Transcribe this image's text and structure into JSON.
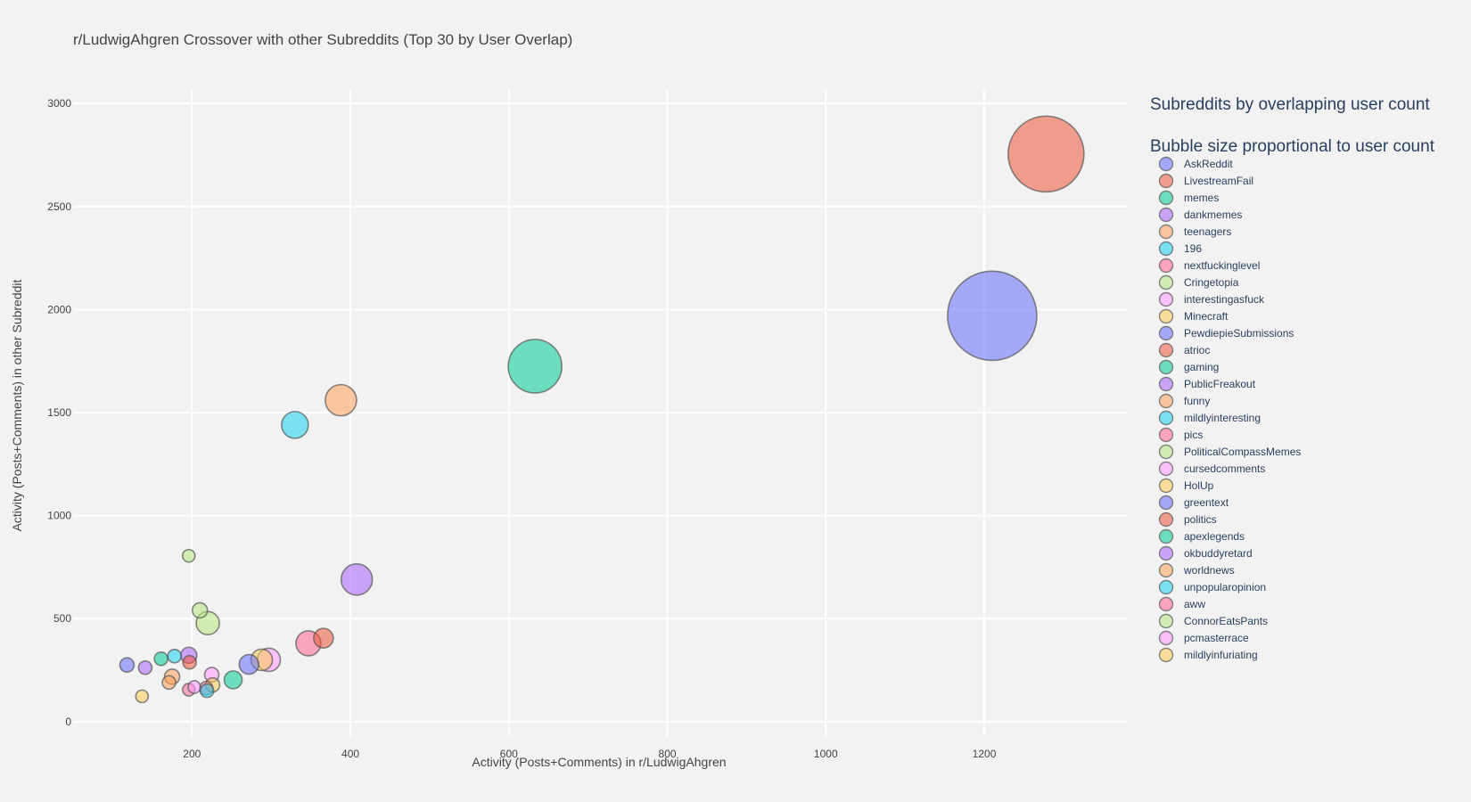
{
  "chart_data": {
    "type": "scatter",
    "title": "r/LudwigAhgren Crossover with other Subreddits (Top 30 by User Overlap)",
    "xlabel": "Activity (Posts+Comments) in r/LudwigAhgren",
    "ylabel": "Activity (Posts+Comments) in other Subreddit",
    "xlim": [
      50,
      1380
    ],
    "ylim": [
      -70,
      3070
    ],
    "xticks": [
      200,
      400,
      600,
      800,
      1000,
      1200
    ],
    "yticks": [
      0,
      500,
      1000,
      1500,
      2000,
      2500,
      3000
    ],
    "legend_title": "Subreddits by overlapping user count",
    "legend_subtitle": "Bubble size proportional to user count",
    "legend_position": "right",
    "grid": true,
    "series": [
      {
        "name": "AskReddit",
        "x": 1210,
        "y": 1970,
        "size": 100,
        "color": "#636efa"
      },
      {
        "name": "LivestreamFail",
        "x": 1278,
        "y": 2755,
        "size": 85,
        "color": "#EF553B"
      },
      {
        "name": "memes",
        "x": 633,
        "y": 1725,
        "size": 60,
        "color": "#00cc96"
      },
      {
        "name": "dankmemes",
        "x": 408,
        "y": 690,
        "size": 35,
        "color": "#ab63fa"
      },
      {
        "name": "teenagers",
        "x": 388,
        "y": 1560,
        "size": 35,
        "color": "#FFA15A"
      },
      {
        "name": "196",
        "x": 330,
        "y": 1440,
        "size": 30,
        "color": "#19d3f3"
      },
      {
        "name": "nextfuckinglevel",
        "x": 347,
        "y": 380,
        "size": 28,
        "color": "#FF6692"
      },
      {
        "name": "Cringetopia",
        "x": 220,
        "y": 478,
        "size": 26,
        "color": "#B6E880"
      },
      {
        "name": "interestingasfuck",
        "x": 297,
        "y": 300,
        "size": 26,
        "color": "#FF97FF"
      },
      {
        "name": "Minecraft",
        "x": 288,
        "y": 300,
        "size": 24,
        "color": "#FECB52"
      },
      {
        "name": "PewdiepieSubmissions",
        "x": 272,
        "y": 278,
        "size": 22,
        "color": "#636efa"
      },
      {
        "name": "atrioc",
        "x": 366,
        "y": 405,
        "size": 22,
        "color": "#EF553B"
      },
      {
        "name": "gaming",
        "x": 252,
        "y": 203,
        "size": 20,
        "color": "#00cc96"
      },
      {
        "name": "PublicFreakout",
        "x": 196,
        "y": 322,
        "size": 18,
        "color": "#ab63fa"
      },
      {
        "name": "funny",
        "x": 175,
        "y": 218,
        "size": 17,
        "color": "#FFA15A"
      },
      {
        "name": "mildlyinteresting",
        "x": 178,
        "y": 318,
        "size": 15,
        "color": "#19d3f3"
      },
      {
        "name": "pics",
        "x": 218,
        "y": 162,
        "size": 15,
        "color": "#FF6692"
      },
      {
        "name": "PoliticalCompassMemes",
        "x": 210,
        "y": 540,
        "size": 17,
        "color": "#B6E880"
      },
      {
        "name": "cursedcomments",
        "x": 225,
        "y": 228,
        "size": 16,
        "color": "#FF97FF"
      },
      {
        "name": "HolUp",
        "x": 226,
        "y": 178,
        "size": 16,
        "color": "#FECB52"
      },
      {
        "name": "greentext",
        "x": 118,
        "y": 275,
        "size": 16,
        "color": "#636efa"
      },
      {
        "name": "politics",
        "x": 197,
        "y": 288,
        "size": 15,
        "color": "#EF553B"
      },
      {
        "name": "apexlegends",
        "x": 161,
        "y": 305,
        "size": 15,
        "color": "#00cc96"
      },
      {
        "name": "okbuddyretard",
        "x": 141,
        "y": 262,
        "size": 15,
        "color": "#ab63fa"
      },
      {
        "name": "worldnews",
        "x": 171,
        "y": 190,
        "size": 15,
        "color": "#FFA15A"
      },
      {
        "name": "unpopularopinion",
        "x": 219,
        "y": 150,
        "size": 15,
        "color": "#19d3f3"
      },
      {
        "name": "aww",
        "x": 196,
        "y": 155,
        "size": 14,
        "color": "#FF6692"
      },
      {
        "name": "ConnorEatsPants",
        "x": 196,
        "y": 805,
        "size": 14,
        "color": "#B6E880"
      },
      {
        "name": "pcmasterrace",
        "x": 203,
        "y": 168,
        "size": 14,
        "color": "#FF97FF"
      },
      {
        "name": "mildlyinfuriating",
        "x": 137,
        "y": 123,
        "size": 14,
        "color": "#FECB52"
      }
    ]
  }
}
